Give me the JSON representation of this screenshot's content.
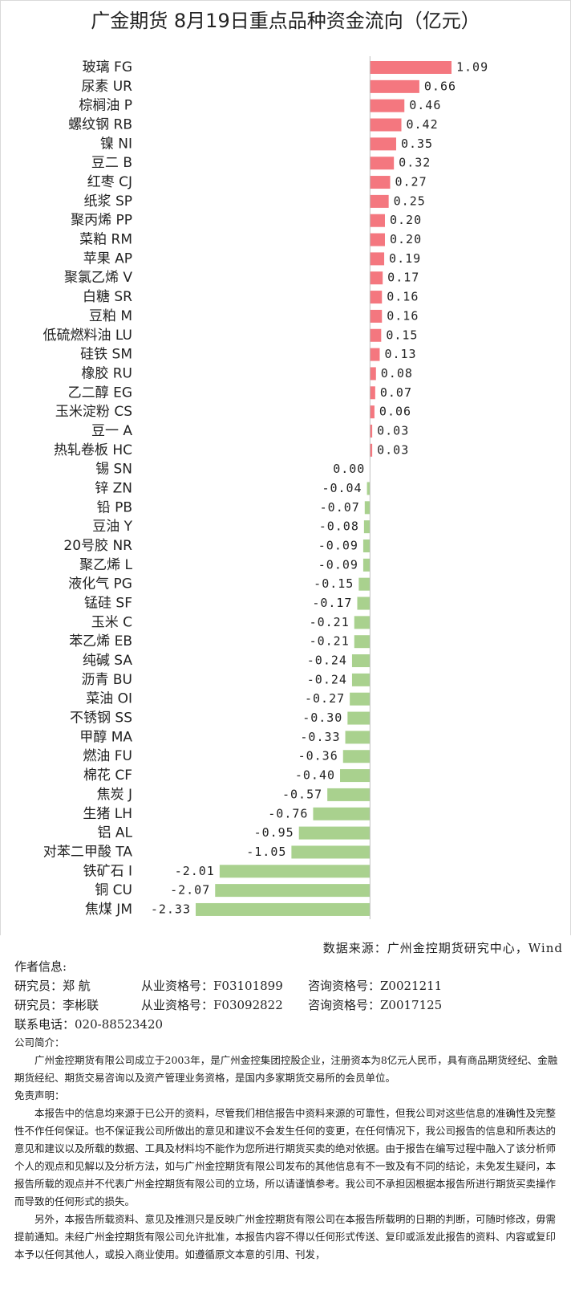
{
  "chart_data": {
    "type": "bar",
    "orientation": "horizontal",
    "title": "广金期货 8月19日重点品种资金流向（亿元）",
    "categories": [
      "玻璃 FG",
      "尿素 UR",
      "棕榈油 P",
      "螺纹钢 RB",
      "镍 NI",
      "豆二 B",
      "红枣 CJ",
      "纸浆 SP",
      "聚丙烯 PP",
      "菜粕 RM",
      "苹果 AP",
      "聚氯乙烯 V",
      "白糖 SR",
      "豆粕 M",
      "低硫燃料油 LU",
      "硅铁 SM",
      "橡胶 RU",
      "乙二醇 EG",
      "玉米淀粉 CS",
      "豆一 A",
      "热轧卷板 HC",
      "锡 SN",
      "锌 ZN",
      "铅 PB",
      "豆油 Y",
      "20号胶 NR",
      "聚乙烯 L",
      "液化气 PG",
      "锰硅 SF",
      "玉米 C",
      "苯乙烯 EB",
      "纯碱 SA",
      "沥青 BU",
      "菜油 OI",
      "不锈钢 SS",
      "甲醇 MA",
      "燃油 FU",
      "棉花 CF",
      "焦炭 J",
      "生猪 LH",
      "铝 AL",
      "对苯二甲酸 TA",
      "铁矿石 I",
      "铜 CU",
      "焦煤 JM"
    ],
    "values": [
      1.09,
      0.66,
      0.46,
      0.42,
      0.35,
      0.32,
      0.27,
      0.25,
      0.2,
      0.2,
      0.19,
      0.17,
      0.16,
      0.16,
      0.15,
      0.13,
      0.08,
      0.07,
      0.06,
      0.03,
      0.03,
      0,
      -0.04,
      -0.07,
      -0.08,
      -0.09,
      -0.09,
      -0.15,
      -0.17,
      -0.21,
      -0.21,
      -0.24,
      -0.24,
      -0.27,
      -0.3,
      -0.33,
      -0.36,
      -0.4,
      -0.57,
      -0.76,
      -0.95,
      -1.05,
      -2.01,
      -2.07,
      -2.33
    ],
    "value_labels": [
      "1.09",
      "0.66",
      "0.46",
      "0.42",
      "0.35",
      "0.32",
      "0.27",
      "0.25",
      "0.20",
      "0.20",
      "0.19",
      "0.17",
      "0.16",
      "0.16",
      "0.15",
      "0.13",
      "0.08",
      "0.07",
      "0.06",
      "0.03",
      "0.03",
      "0.00",
      "-0.04",
      "-0.07",
      "-0.08",
      "-0.09",
      "-0.09",
      "-0.15",
      "-0.17",
      "-0.21",
      "-0.21",
      "-0.24",
      "-0.24",
      "-0.27",
      "-0.30",
      "-0.33",
      "-0.36",
      "-0.40",
      "-0.57",
      "-0.76",
      "-0.95",
      "-1.05",
      "-2.01",
      "-2.07",
      "-2.33"
    ],
    "colors": {
      "positive": "#f4777f",
      "negative": "#a9d18e"
    }
  },
  "source": "数据来源：广州金控期货研究中心，Wind",
  "authors": {
    "heading": "作者信息:",
    "analysts": [
      {
        "role": "研究员：郑 航",
        "license": "从业资格号：F03101899",
        "consult": "咨询资格号：Z0021211"
      },
      {
        "role": "研究员：李彬联",
        "license": "从业资格号：F03092822",
        "consult": "咨询资格号：Z0017125"
      }
    ],
    "phone": "联系电话：020-88523420"
  },
  "company_intro": {
    "heading": "公司简介：",
    "text": "广州金控期货有限公司成立于2003年，是广州金控集团控股企业，注册资本为8亿元人民币，具有商品期货经纪、金融期货经纪、期货交易咨询以及资产管理业务资格，是国内多家期货交易所的会员单位。"
  },
  "disclaimer": {
    "heading": "免责声明：",
    "paragraphs": [
      "本报告中的信息均来源于已公开的资料，尽管我们相信报告中资料来源的可靠性，但我公司对这些信息的准确性及完整性不作任何保证。也不保证我公司所做出的意见和建议不会发生任何的变更，在任何情况下，我公司报告的信息和所表达的意见和建议以及所载的数据、工具及材料均不能作为您所进行期货买卖的绝对依据。由于报告在编写过程中融入了该分析师个人的观点和见解以及分析方法，如与广州金控期货有限公司发布的其他信息有不一致及有不同的结论，未免发生疑问，本报告所载的观点并不代表广州金控期货有限公司的立场，所以请谨慎参考。我公司不承担因根据本报告所进行期货买卖操作而导致的任何形式的损失。",
      "另外，本报告所载资料、意见及推测只是反映广州金控期货有限公司在本报告所载明的日期的判断，可随时修改，毋需提前通知。未经广州金控期货有限公司允许批准，本报告内容不得以任何形式传送、复印或派发此报告的资料、内容或复印本予以任何其他人，或投入商业使用。如遵循原文本意的引用、刊发，"
    ]
  }
}
